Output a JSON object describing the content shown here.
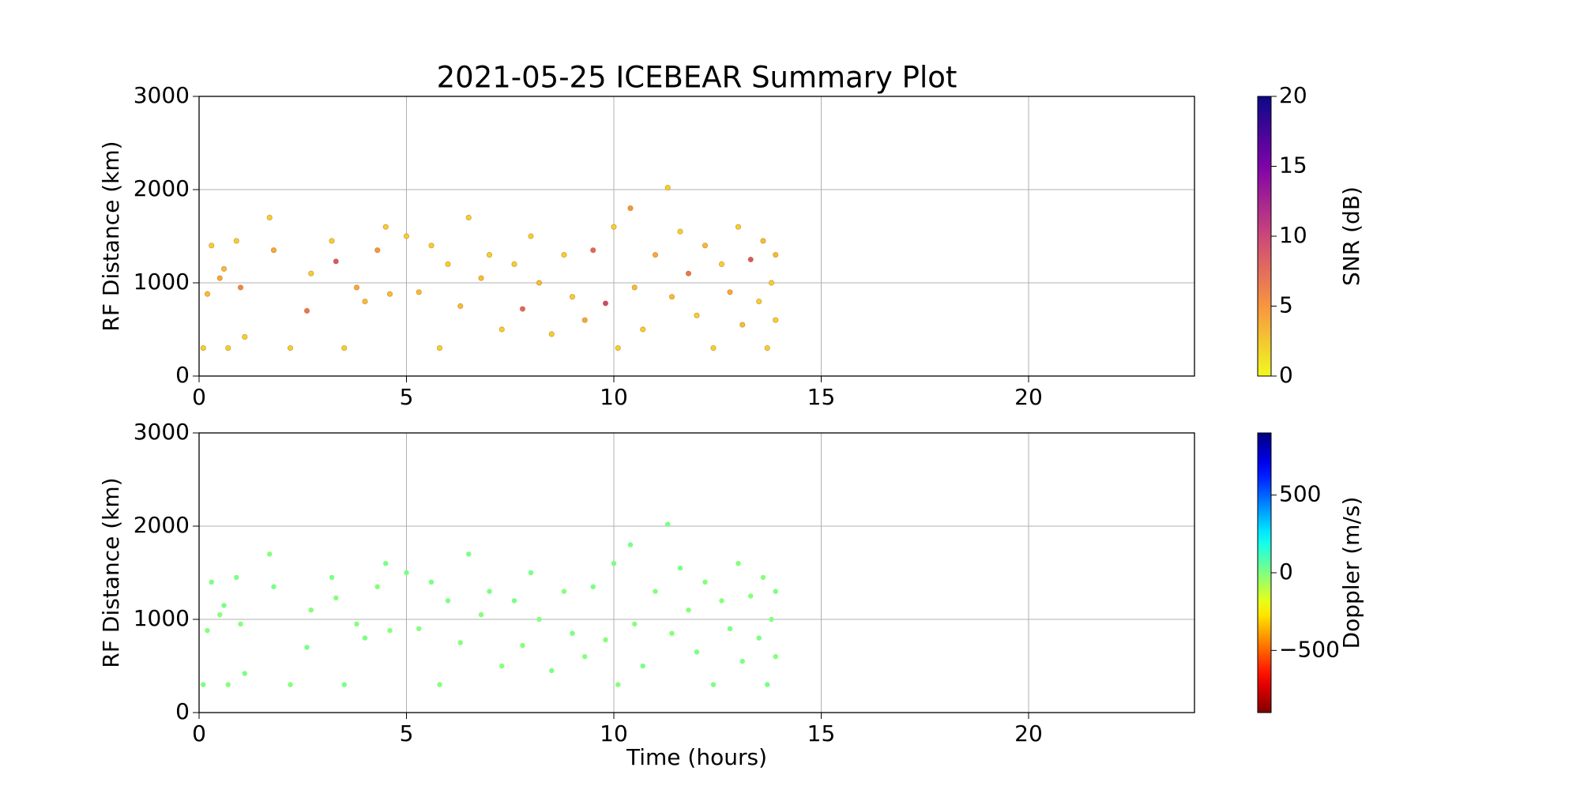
{
  "chart_data": [
    {
      "type": "scatter",
      "title": "2021-05-25 ICEBEAR Summary Plot",
      "y_label": "RF Distance (km)",
      "x": [
        0.1,
        0.2,
        0.3,
        0.5,
        0.6,
        0.7,
        0.9,
        1.0,
        1.1,
        1.7,
        1.8,
        2.2,
        2.6,
        2.7,
        3.2,
        3.3,
        3.5,
        3.8,
        4.0,
        4.3,
        4.5,
        4.6,
        5.0,
        5.3,
        5.6,
        5.8,
        6.0,
        6.3,
        6.5,
        6.8,
        7.0,
        7.3,
        7.6,
        7.8,
        8.0,
        8.2,
        8.5,
        8.8,
        9.0,
        9.3,
        9.5,
        9.8,
        10.0,
        10.1,
        10.4,
        10.5,
        10.7,
        11.0,
        11.3,
        11.4,
        11.6,
        11.8,
        12.0,
        12.2,
        12.4,
        12.6,
        12.8,
        13.0,
        13.1,
        13.3,
        13.5,
        13.6,
        13.7,
        13.8,
        13.9,
        13.9
      ],
      "y": [
        300,
        880,
        1400,
        1050,
        1150,
        300,
        1450,
        950,
        420,
        1700,
        1350,
        300,
        700,
        1100,
        1450,
        1230,
        300,
        950,
        800,
        1350,
        1600,
        880,
        1500,
        900,
        1400,
        300,
        1200,
        750,
        1700,
        1050,
        1300,
        500,
        1200,
        720,
        1500,
        1000,
        450,
        1300,
        850,
        600,
        1350,
        780,
        1600,
        300,
        1800,
        950,
        500,
        1300,
        2020,
        850,
        1550,
        1100,
        650,
        1400,
        300,
        1200,
        900,
        1600,
        550,
        1250,
        800,
        1450,
        300,
        1000,
        1300,
        600
      ],
      "c": [
        2,
        3,
        2,
        4,
        3,
        2,
        2,
        6,
        2,
        2,
        4,
        2,
        7,
        2,
        2,
        9,
        2,
        4,
        3,
        5,
        2,
        3,
        2,
        3,
        2,
        2,
        2,
        3,
        2,
        3,
        2,
        2,
        2,
        8,
        2,
        3,
        2,
        2,
        2,
        4,
        8,
        10,
        2,
        2,
        5,
        3,
        2,
        4,
        2,
        3,
        2,
        7,
        2,
        3,
        2,
        2,
        4,
        2,
        3,
        9,
        2,
        3,
        2,
        2,
        3,
        2
      ],
      "xlim": [
        0,
        24
      ],
      "ylim": [
        0,
        3000
      ],
      "xticks": [
        0,
        5,
        10,
        15,
        20
      ],
      "yticks": [
        0,
        1000,
        2000,
        3000
      ],
      "grid": true,
      "colorbar": {
        "label": "SNR (dB)",
        "colormap": "plasma_r",
        "lim": [
          0,
          20
        ],
        "ticks": [
          0,
          5,
          10,
          15,
          20
        ]
      }
    },
    {
      "type": "scatter",
      "x_label": "Time (hours)",
      "y_label": "RF Distance (km)",
      "x": [
        0.1,
        0.2,
        0.3,
        0.5,
        0.6,
        0.7,
        0.9,
        1.0,
        1.1,
        1.7,
        1.8,
        2.2,
        2.6,
        2.7,
        3.2,
        3.3,
        3.5,
        3.8,
        4.0,
        4.3,
        4.5,
        4.6,
        5.0,
        5.3,
        5.6,
        5.8,
        6.0,
        6.3,
        6.5,
        6.8,
        7.0,
        7.3,
        7.6,
        7.8,
        8.0,
        8.2,
        8.5,
        8.8,
        9.0,
        9.3,
        9.5,
        9.8,
        10.0,
        10.1,
        10.4,
        10.5,
        10.7,
        11.0,
        11.3,
        11.4,
        11.6,
        11.8,
        12.0,
        12.2,
        12.4,
        12.6,
        12.8,
        13.0,
        13.1,
        13.3,
        13.5,
        13.6,
        13.7,
        13.8,
        13.9,
        13.9
      ],
      "y": [
        300,
        880,
        1400,
        1050,
        1150,
        300,
        1450,
        950,
        420,
        1700,
        1350,
        300,
        700,
        1100,
        1450,
        1230,
        300,
        950,
        800,
        1350,
        1600,
        880,
        1500,
        900,
        1400,
        300,
        1200,
        750,
        1700,
        1050,
        1300,
        500,
        1200,
        720,
        1500,
        1000,
        450,
        1300,
        850,
        600,
        1350,
        780,
        1600,
        300,
        1800,
        950,
        500,
        1300,
        2020,
        850,
        1550,
        1100,
        650,
        1400,
        300,
        1200,
        900,
        1600,
        550,
        1250,
        800,
        1450,
        300,
        1000,
        1300,
        600
      ],
      "c": [
        10,
        -10,
        10,
        -10,
        10,
        -10,
        10,
        -10,
        10,
        -10,
        10,
        -10,
        10,
        -10,
        10,
        -10,
        10,
        -10,
        10,
        -10,
        10,
        -10,
        10,
        -10,
        10,
        -10,
        10,
        -10,
        10,
        -10,
        10,
        -10,
        10,
        -10,
        10,
        -10,
        10,
        -10,
        10,
        -10,
        10,
        -10,
        10,
        -10,
        10,
        -10,
        10,
        -10,
        10,
        -10,
        10,
        -10,
        10,
        -10,
        10,
        -10,
        10,
        -10,
        10,
        -10,
        10,
        -10,
        10,
        -10,
        10,
        -10
      ],
      "xlim": [
        0,
        24
      ],
      "ylim": [
        0,
        3000
      ],
      "xticks": [
        0,
        5,
        10,
        15,
        20
      ],
      "yticks": [
        0,
        1000,
        2000,
        3000
      ],
      "grid": true,
      "colorbar": {
        "label": "Doppler (m/s)",
        "colormap": "jet_r",
        "lim": [
          -900,
          900
        ],
        "ticks": [
          {
            "value": -500,
            "label": "−500"
          },
          0,
          500
        ]
      }
    }
  ]
}
